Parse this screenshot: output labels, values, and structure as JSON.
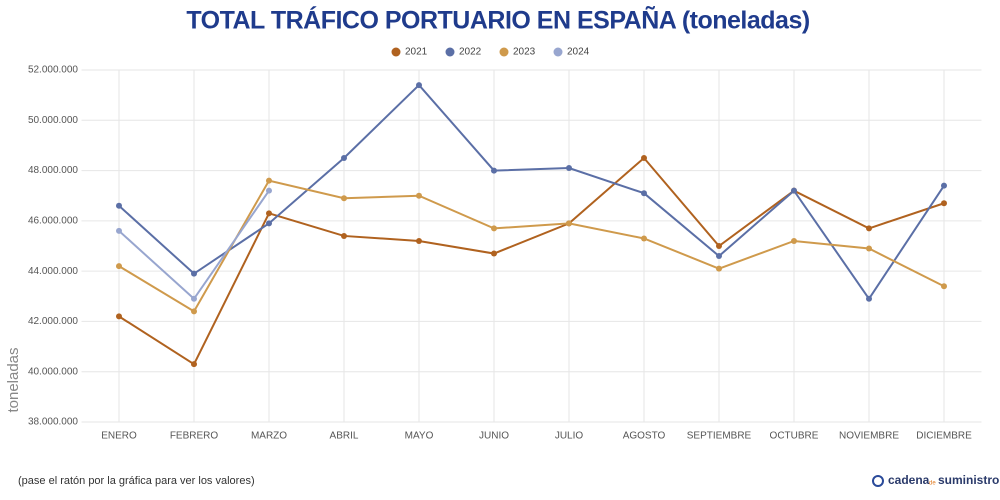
{
  "chart_data": {
    "type": "line",
    "title": "TOTAL TRÁFICO PORTUARIO EN ESPAÑA (toneladas)",
    "y_label": "toneladas",
    "note": "(pase el ratón por la gráfica para ver los valores)",
    "brand": [
      "cadena",
      "de",
      "suministro"
    ],
    "categories": [
      "ENERO",
      "FEBRERO",
      "MARZO",
      "ABRIL",
      "MAYO",
      "JUNIO",
      "JULIO",
      "AGOSTO",
      "SEPTIEMBRE",
      "OCTUBRE",
      "NOVIEMBRE",
      "DICIEMBRE"
    ],
    "series": [
      {
        "name": "2021",
        "color": "#b0621f",
        "values": [
          42200000,
          40300000,
          46300000,
          45400000,
          45200000,
          44700000,
          45900000,
          48500000,
          45000000,
          47200000,
          45700000,
          46700000
        ]
      },
      {
        "name": "2022",
        "color": "#5b6fa6",
        "values": [
          46600000,
          43900000,
          45900000,
          48500000,
          51400000,
          48000000,
          48100000,
          47100000,
          44600000,
          47200000,
          42900000,
          47400000
        ]
      },
      {
        "name": "2023",
        "color": "#cf9a4c",
        "values": [
          44200000,
          42400000,
          47600000,
          46900000,
          47000000,
          45700000,
          45900000,
          45300000,
          44100000,
          45200000,
          44900000,
          43400000
        ]
      },
      {
        "name": "2024",
        "color": "#98a6cf",
        "values": [
          45600000,
          42900000,
          47200000,
          null,
          null,
          null,
          null,
          null,
          null,
          null,
          null,
          null
        ]
      }
    ],
    "ylim": [
      38000000,
      52000000
    ],
    "yticks": [
      {
        "value": 38000000,
        "label": "38.000.000"
      },
      {
        "value": 40000000,
        "label": "40.000.000"
      },
      {
        "value": 42000000,
        "label": "42.000.000"
      },
      {
        "value": 44000000,
        "label": "44.000.000"
      },
      {
        "value": 46000000,
        "label": "46.000.000"
      },
      {
        "value": 48000000,
        "label": "48.000.000"
      },
      {
        "value": 50000000,
        "label": "50.000.000"
      },
      {
        "value": 52000000,
        "label": "52.000.000"
      }
    ],
    "grid": true
  }
}
